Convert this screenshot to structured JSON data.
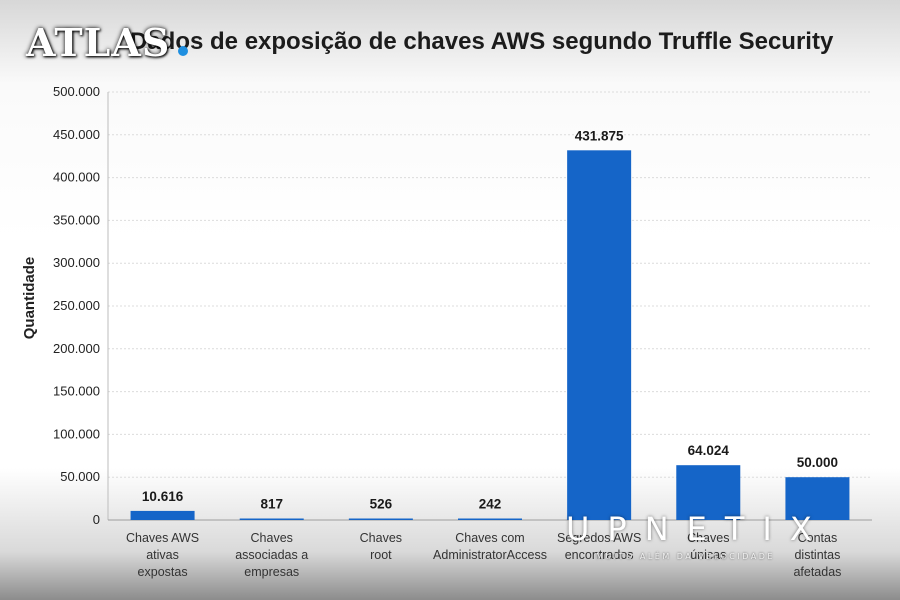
{
  "chart_data": {
    "type": "bar",
    "title": "Dados de exposição de chaves AWS segundo Truffle Security",
    "xlabel": "",
    "ylabel": "Quantidade",
    "ylim": [
      0,
      500000
    ],
    "yticks": [
      0,
      50000,
      100000,
      150000,
      200000,
      250000,
      300000,
      350000,
      400000,
      450000,
      500000
    ],
    "ytick_labels": [
      "0",
      "50.000",
      "100.000",
      "150.000",
      "200.000",
      "250.000",
      "300.000",
      "350.000",
      "400.000",
      "450.000",
      "500.000"
    ],
    "grid": true,
    "bar_color": "#1565c8",
    "categories": [
      [
        "Chaves AWS",
        "ativas",
        "expostas"
      ],
      [
        "Chaves",
        "associadas a",
        "empresas"
      ],
      [
        "Chaves",
        "root"
      ],
      [
        "Chaves com",
        "AdministratorAccess"
      ],
      [
        "Segredos AWS",
        "encontrados"
      ],
      [
        "Chaves",
        "únicas"
      ],
      [
        "Contas",
        "distintas",
        "afetadas"
      ]
    ],
    "values": [
      10616,
      817,
      526,
      242,
      431875,
      64024,
      50000
    ],
    "data_labels": [
      "10.616",
      "817",
      "526",
      "242",
      "431.875",
      "64.024",
      "50.000"
    ]
  },
  "brand": {
    "text": "ATLAS"
  },
  "watermark": {
    "text": "UPNETIX",
    "subtitle": "MUITO ALÉM DA VELOCIDADE"
  }
}
